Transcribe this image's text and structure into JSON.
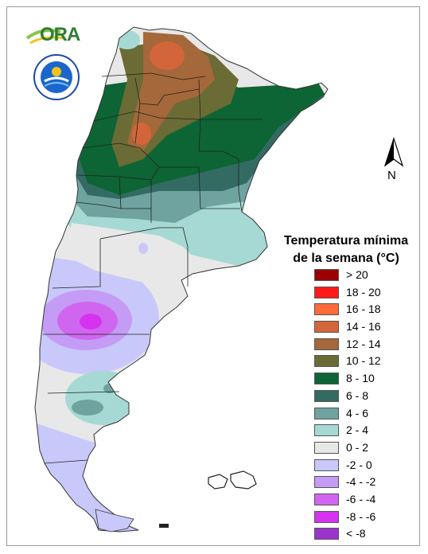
{
  "map": {
    "legend_title_line1": "Temperatura mínima",
    "legend_title_line2": "de la semana (°C)",
    "north_label": "N",
    "logo_text": "ORA",
    "legend": [
      {
        "label": "> 20",
        "color": "#9b0000"
      },
      {
        "label": "18 - 20",
        "color": "#ff1a1a"
      },
      {
        "label": "16 - 18",
        "color": "#ff6a3a"
      },
      {
        "label": "14 - 16",
        "color": "#d2663a"
      },
      {
        "label": "12 - 14",
        "color": "#a5683a"
      },
      {
        "label": "10 - 12",
        "color": "#6b6b35"
      },
      {
        "label": "8 - 10",
        "color": "#0d6434"
      },
      {
        "label": "6 - 8",
        "color": "#336b63"
      },
      {
        "label": "4 - 6",
        "color": "#6fa3a0"
      },
      {
        "label": "2 - 4",
        "color": "#a6d9d3"
      },
      {
        "label": "0 - 2",
        "color": "#e8e8e8"
      },
      {
        "label": "-2 - 0",
        "color": "#c8c8fa"
      },
      {
        "label": "-4 - -2",
        "color": "#c49bf5"
      },
      {
        "label": "-6 - -4",
        "color": "#d066f0"
      },
      {
        "label": "-8 - -6",
        "color": "#d633f0"
      },
      {
        "label": "< -8",
        "color": "#9b33cc"
      }
    ]
  }
}
